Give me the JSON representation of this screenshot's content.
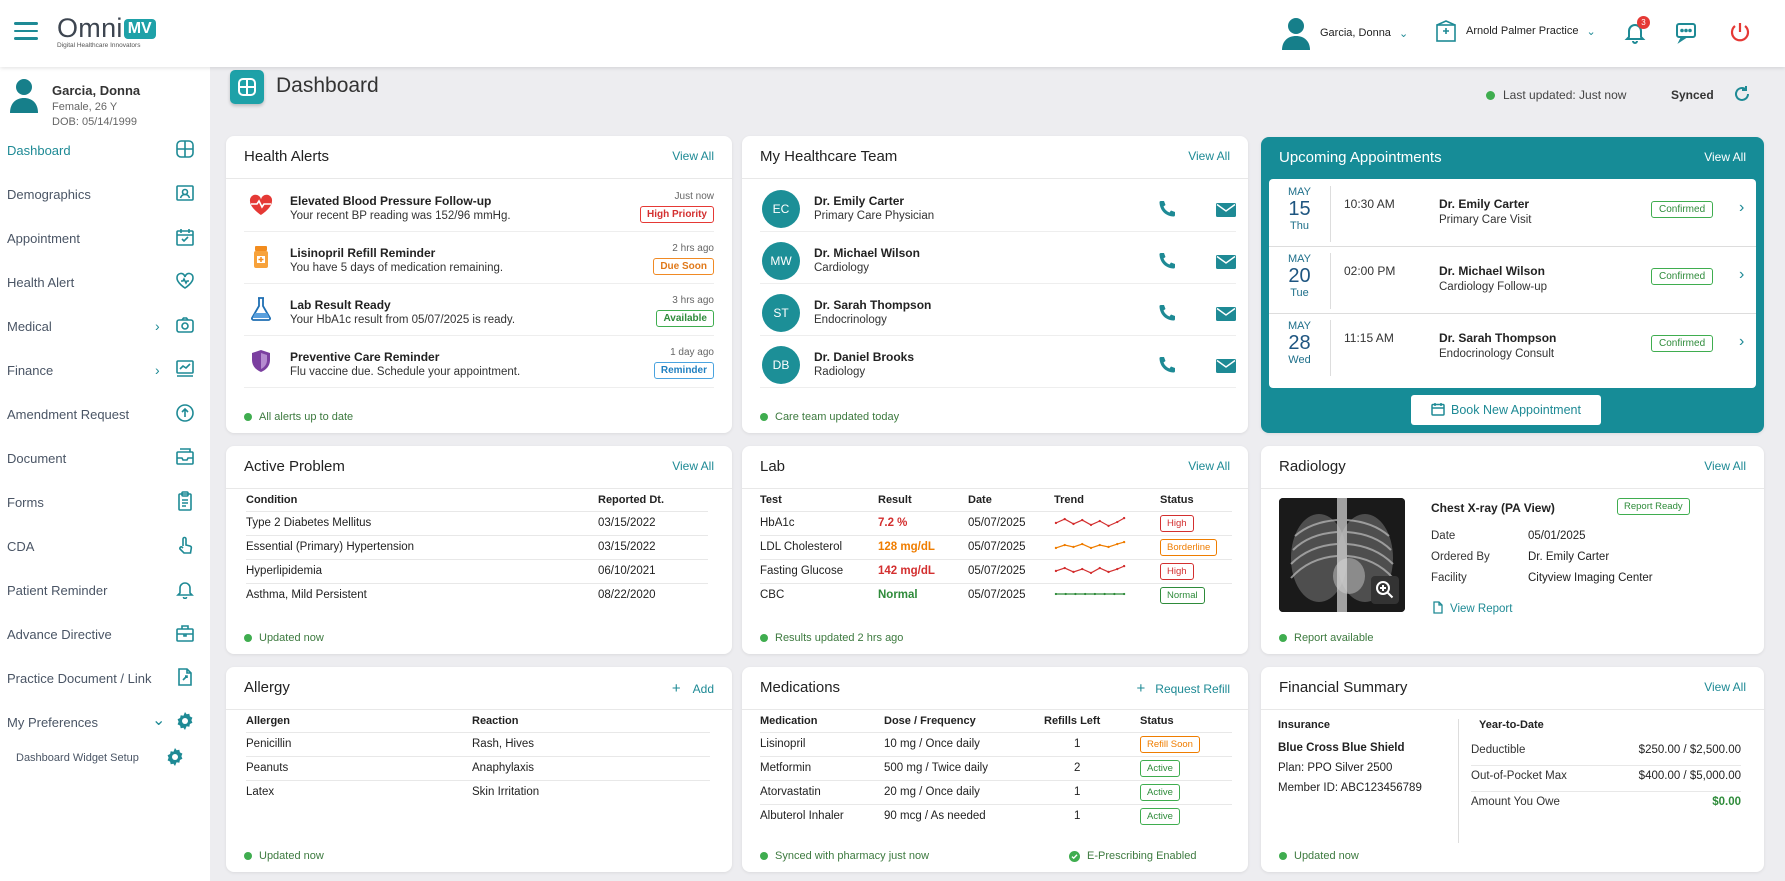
{
  "brand": {
    "name": "Omni",
    "badge": "MV",
    "tagline": "Digital Healthcare Innovators"
  },
  "topbar": {
    "user": "Garcia, Donna",
    "practice": "Arnold Palmer Practice",
    "notifications_count": "3"
  },
  "patient": {
    "name": "Garcia, Donna",
    "gender_age": "Female, 26 Y",
    "dob": "DOB: 05/14/1999"
  },
  "nav": [
    {
      "label": "Dashboard",
      "icon": "dashboard-icon",
      "active": true
    },
    {
      "label": "Demographics",
      "icon": "id-card-icon"
    },
    {
      "label": "Appointment",
      "icon": "calendar-icon"
    },
    {
      "label": "Health Alert",
      "icon": "heart-alert-icon"
    },
    {
      "label": "Medical",
      "icon": "camera-icon",
      "expandable": true
    },
    {
      "label": "Finance",
      "icon": "finance-icon",
      "expandable": true
    },
    {
      "label": "Amendment Request",
      "icon": "upload-icon"
    },
    {
      "label": "Document",
      "icon": "inbox-icon"
    },
    {
      "label": "Forms",
      "icon": "clipboard-icon"
    },
    {
      "label": "CDA",
      "icon": "touch-icon"
    },
    {
      "label": "Patient Reminder",
      "icon": "bell-icon"
    },
    {
      "label": "Advance Directive",
      "icon": "briefcase-icon"
    },
    {
      "label": "Practice Document / Link",
      "icon": "document-link-icon"
    },
    {
      "label": "My Preferences",
      "icon": "gear-icon",
      "expandable": true
    },
    {
      "label": "Dashboard Widget Setup",
      "icon": "gear-icon"
    }
  ],
  "header": {
    "title": "Dashboard",
    "last_updated": "Last updated: Just now",
    "synced": "Synced"
  },
  "health_alerts": {
    "title": "Health Alerts",
    "link": "View All",
    "footer": "All alerts up to date",
    "items": [
      {
        "title": "Elevated Blood Pressure Follow-up",
        "desc": "Your recent BP reading was 152/96 mmHg.",
        "time": "Just now",
        "badge": "High Priority",
        "icon": "heartbeat-icon"
      },
      {
        "title": "Lisinopril Refill Reminder",
        "desc": "You have 5 days of medication remaining.",
        "time": "2 hrs ago",
        "badge": "Due Soon",
        "icon": "pill-bottle-icon"
      },
      {
        "title": "Lab Result Ready",
        "desc": "Your HbA1c result from 05/07/2025 is ready.",
        "time": "3 hrs ago",
        "badge": "Available",
        "icon": "flask-icon"
      },
      {
        "title": "Preventive Care Reminder",
        "desc": "Flu vaccine due. Schedule your appointment.",
        "time": "1 day ago",
        "badge": "Reminder",
        "icon": "shield-icon"
      }
    ]
  },
  "team": {
    "title": "My Healthcare Team",
    "link": "View All",
    "footer": "Care team updated today",
    "members": [
      {
        "initials": "EC",
        "name": "Dr. Emily Carter",
        "role": "Primary Care Physician"
      },
      {
        "initials": "MW",
        "name": "Dr. Michael Wilson",
        "role": "Cardiology"
      },
      {
        "initials": "ST",
        "name": "Dr. Sarah Thompson",
        "role": "Endocrinology"
      },
      {
        "initials": "DB",
        "name": "Dr. Daniel Brooks",
        "role": "Radiology"
      }
    ]
  },
  "appointments": {
    "title": "Upcoming Appointments",
    "link": "View All",
    "book": "Book New Appointment",
    "items": [
      {
        "month": "MAY",
        "day": "15",
        "weekday": "Thu",
        "time": "10:30 AM",
        "doctor": "Dr. Emily Carter",
        "type": "Primary Care Visit",
        "status": "Confirmed"
      },
      {
        "month": "MAY",
        "day": "20",
        "weekday": "Tue",
        "time": "02:00 PM",
        "doctor": "Dr. Michael Wilson",
        "type": "Cardiology Follow-up",
        "status": "Confirmed"
      },
      {
        "month": "MAY",
        "day": "28",
        "weekday": "Wed",
        "time": "11:15 AM",
        "doctor": "Dr. Sarah Thompson",
        "type": "Endocrinology Consult",
        "status": "Confirmed"
      }
    ]
  },
  "problems": {
    "title": "Active Problem",
    "link": "View All",
    "footer": "Updated now",
    "columns": [
      "Condition",
      "Reported Dt."
    ],
    "rows": [
      [
        "Type 2 Diabetes Mellitus",
        "03/15/2022"
      ],
      [
        "Essential (Primary) Hypertension",
        "03/15/2022"
      ],
      [
        "Hyperlipidemia",
        "06/10/2021"
      ],
      [
        "Asthma, Mild Persistent",
        "08/22/2020"
      ]
    ]
  },
  "lab": {
    "title": "Lab",
    "link": "View All",
    "footer": "Results updated 2 hrs ago",
    "columns": [
      "Test",
      "Result",
      "Date",
      "Trend",
      "Status"
    ],
    "rows": [
      {
        "test": "HbA1c",
        "result": "7.2 %",
        "date": "05/07/2025",
        "status": "High",
        "color": "#d32f2f"
      },
      {
        "test": "LDL Cholesterol",
        "result": "128 mg/dL",
        "date": "05/07/2025",
        "status": "Borderline",
        "color": "#ef7d00"
      },
      {
        "test": "Fasting Glucose",
        "result": "142 mg/dL",
        "date": "05/07/2025",
        "status": "High",
        "color": "#d32f2f"
      },
      {
        "test": "CBC",
        "result": "Normal",
        "date": "05/07/2025",
        "status": "Normal",
        "color": "#2e8b3a"
      }
    ]
  },
  "radiology": {
    "title": "Radiology",
    "link": "View All",
    "footer": "Report available",
    "study": "Chest X-ray (PA View)",
    "status": "Report Ready",
    "date_label": "Date",
    "date": "05/01/2025",
    "ordered_label": "Ordered By",
    "ordered_by": "Dr. Emily Carter",
    "facility_label": "Facility",
    "facility": "Cityview Imaging Center",
    "view_link": "View Report"
  },
  "allergy": {
    "title": "Allergy",
    "link": "Add",
    "footer": "Updated now",
    "columns": [
      "Allergen",
      "Reaction"
    ],
    "rows": [
      [
        "Penicillin",
        "Rash, Hives"
      ],
      [
        "Peanuts",
        "Anaphylaxis"
      ],
      [
        "Latex",
        "Skin Irritation"
      ]
    ]
  },
  "medications": {
    "title": "Medications",
    "link": "Request Refill",
    "footer": "Synced with pharmacy just now",
    "footer2": "E-Prescribing Enabled",
    "columns": [
      "Medication",
      "Dose / Frequency",
      "Refills Left",
      "Status"
    ],
    "rows": [
      {
        "name": "Lisinopril",
        "dose": "10 mg / Once daily",
        "refills": "1",
        "status": "Refill Soon"
      },
      {
        "name": "Metformin",
        "dose": "500 mg / Twice daily",
        "refills": "2",
        "status": "Active"
      },
      {
        "name": "Atorvastatin",
        "dose": "20 mg / Once daily",
        "refills": "1",
        "status": "Active"
      },
      {
        "name": "Albuterol Inhaler",
        "dose": "90 mcg / As needed",
        "refills": "1",
        "status": "Active"
      }
    ]
  },
  "finance": {
    "title": "Financial Summary",
    "link": "View All",
    "footer": "Updated now",
    "insurance_label": "Insurance",
    "insurer": "Blue Cross Blue Shield",
    "plan": "Plan: PPO Silver 2500",
    "member": "Member ID: ABC123456789",
    "ytd_label": "Year-to-Date",
    "rows": [
      {
        "label": "Deductible",
        "value": "$250.00 / $2,500.00"
      },
      {
        "label": "Out-of-Pocket Max",
        "value": "$400.00 / $5,000.00"
      },
      {
        "label": "Amount You Owe",
        "value": "$0.00"
      }
    ]
  },
  "colors": {
    "accent": "#1e8a95",
    "appointments_bg": "#168c97",
    "ok": "#3fad4f",
    "danger": "#d32f2f",
    "warn": "#ef7d00"
  }
}
